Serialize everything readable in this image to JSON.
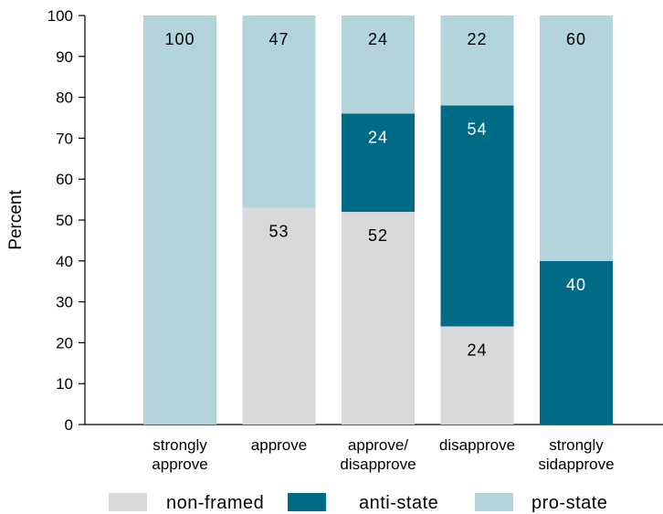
{
  "chart_data": {
    "type": "bar",
    "stacked": true,
    "categories": [
      [
        "strongly",
        "approve"
      ],
      [
        "approve"
      ],
      [
        "approve/",
        "disapprove"
      ],
      [
        "disapprove"
      ],
      [
        "strongly",
        "sidapprove"
      ]
    ],
    "series": [
      {
        "name": "non-framed",
        "color": "#d9d9db",
        "label_color": "#000000",
        "values": [
          0,
          53,
          52,
          24,
          0
        ]
      },
      {
        "name": "anti-state",
        "color": "#006b84",
        "label_color": "#ffffff",
        "values": [
          0,
          0,
          24,
          54,
          40
        ]
      },
      {
        "name": "pro-state",
        "color": "#b2d4da",
        "label_color": "#000000",
        "values": [
          100,
          47,
          24,
          22,
          60
        ]
      }
    ],
    "ylabel": "Percent",
    "xlabel": "",
    "ylim": [
      0,
      100
    ],
    "yticks": [
      0,
      10,
      20,
      30,
      40,
      50,
      60,
      70,
      80,
      90,
      100
    ],
    "grid": false,
    "legend_position": "bottom"
  }
}
